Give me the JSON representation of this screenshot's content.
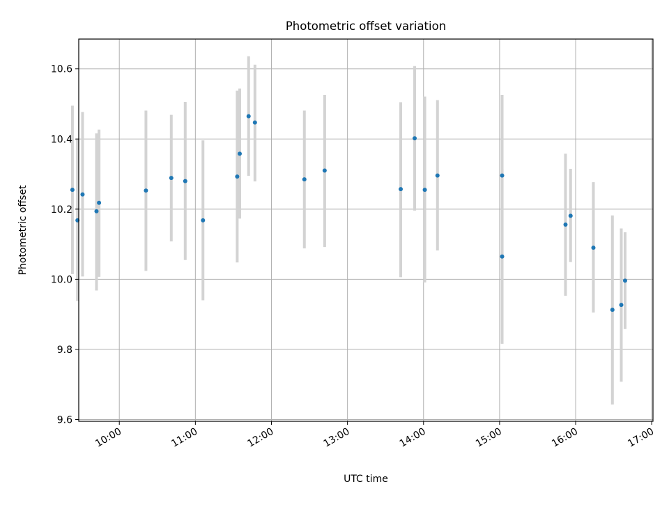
{
  "chart_data": {
    "type": "scatter",
    "title": "Photometric offset variation",
    "xlabel": "UTC time",
    "ylabel": "Photometric offset",
    "x_is_time": true,
    "xlim": [
      "09:28",
      "17:01"
    ],
    "ylim": [
      9.595,
      10.685
    ],
    "x_tick_labels": [
      "10:00",
      "11:00",
      "12:00",
      "13:00",
      "14:00",
      "15:00",
      "16:00",
      "17:00"
    ],
    "x_ticks": [
      "10:00",
      "11:00",
      "12:00",
      "13:00",
      "14:00",
      "15:00",
      "16:00",
      "17:00"
    ],
    "y_tick_labels": [
      "9.6",
      "9.8",
      "10.0",
      "10.2",
      "10.4",
      "10.6"
    ],
    "y_ticks": [
      9.6,
      9.8,
      10.0,
      10.2,
      10.4,
      10.6
    ],
    "grid": true,
    "marker_color": "#1f77b4",
    "errorbar_color": "#d3d3d3",
    "points": [
      {
        "t": "09:23",
        "y": 10.255,
        "lo": 10.015,
        "hi": 10.495
      },
      {
        "t": "09:27",
        "y": 10.168,
        "lo": 9.938,
        "hi": 10.402
      },
      {
        "t": "09:31",
        "y": 10.242,
        "lo": 10.008,
        "hi": 10.477
      },
      {
        "t": "09:42",
        "y": 10.194,
        "lo": 9.968,
        "hi": 10.416
      },
      {
        "t": "09:44",
        "y": 10.218,
        "lo": 10.007,
        "hi": 10.427
      },
      {
        "t": "10:21",
        "y": 10.253,
        "lo": 10.024,
        "hi": 10.481
      },
      {
        "t": "10:41",
        "y": 10.289,
        "lo": 10.108,
        "hi": 10.469
      },
      {
        "t": "10:52",
        "y": 10.28,
        "lo": 10.055,
        "hi": 10.506
      },
      {
        "t": "11:06",
        "y": 10.168,
        "lo": 9.94,
        "hi": 10.396
      },
      {
        "t": "11:33",
        "y": 10.293,
        "lo": 10.048,
        "hi": 10.538
      },
      {
        "t": "11:35",
        "y": 10.358,
        "lo": 10.173,
        "hi": 10.544
      },
      {
        "t": "11:42",
        "y": 10.465,
        "lo": 10.295,
        "hi": 10.636
      },
      {
        "t": "11:47",
        "y": 10.447,
        "lo": 10.279,
        "hi": 10.612
      },
      {
        "t": "12:26",
        "y": 10.285,
        "lo": 10.088,
        "hi": 10.481
      },
      {
        "t": "12:42",
        "y": 10.31,
        "lo": 10.092,
        "hi": 10.526
      },
      {
        "t": "13:42",
        "y": 10.257,
        "lo": 10.006,
        "hi": 10.505
      },
      {
        "t": "13:53",
        "y": 10.402,
        "lo": 10.196,
        "hi": 10.608
      },
      {
        "t": "14:01",
        "y": 10.255,
        "lo": 9.991,
        "hi": 10.521
      },
      {
        "t": "14:11",
        "y": 10.296,
        "lo": 10.082,
        "hi": 10.511
      },
      {
        "t": "15:02",
        "y": 10.296,
        "lo": 10.068,
        "hi": 10.526
      },
      {
        "t": "15:02",
        "y": 10.065,
        "lo": 9.816,
        "hi": 10.314
      },
      {
        "t": "15:52",
        "y": 10.156,
        "lo": 9.953,
        "hi": 10.358
      },
      {
        "t": "15:56",
        "y": 10.181,
        "lo": 10.049,
        "hi": 10.315
      },
      {
        "t": "16:14",
        "y": 10.09,
        "lo": 9.905,
        "hi": 10.277
      },
      {
        "t": "16:29",
        "y": 9.913,
        "lo": 9.643,
        "hi": 10.182
      },
      {
        "t": "16:36",
        "y": 9.927,
        "lo": 9.708,
        "hi": 10.145
      },
      {
        "t": "16:39",
        "y": 9.996,
        "lo": 9.858,
        "hi": 10.134
      }
    ]
  }
}
